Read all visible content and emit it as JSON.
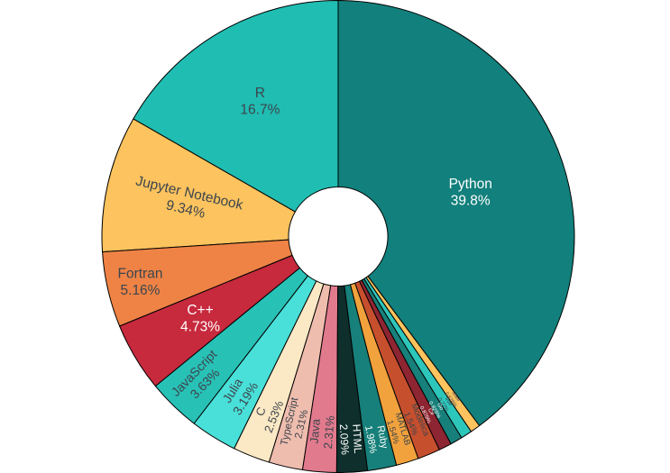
{
  "chart_data": {
    "type": "pie",
    "subtype": "donut",
    "title": "",
    "hole": 0.21,
    "background": "#ffffff",
    "outline_color": "#000000",
    "label_position": "inside",
    "layout_hints": {
      "start": "top",
      "largest_slice_direction": "clockwise-from-top",
      "remaining_slices_direction": "counterclockwise-from-top",
      "sorted": "descending",
      "legend": "none",
      "axes": "none"
    },
    "text_colors": {
      "dark": "#3d454d",
      "light": "#ffffff"
    },
    "slices": [
      {
        "label": "Python",
        "value": 39.8,
        "pct_label": "39.8%",
        "color": "#12807c",
        "text": "light"
      },
      {
        "label": "R",
        "value": 16.7,
        "pct_label": "16.7%",
        "color": "#20bdb2",
        "text": "dark"
      },
      {
        "label": "Jupyter Notebook",
        "value": 9.34,
        "pct_label": "9.34%",
        "color": "#fcc35e",
        "text": "dark"
      },
      {
        "label": "Fortran",
        "value": 5.16,
        "pct_label": "5.16%",
        "color": "#ee8345",
        "text": "dark"
      },
      {
        "label": "C++",
        "value": 4.73,
        "pct_label": "4.73%",
        "color": "#c7293d",
        "text": "light"
      },
      {
        "label": "JavaScript",
        "value": 3.63,
        "pct_label": "3.63%",
        "color": "#28c1b6",
        "text": "dark"
      },
      {
        "label": "Julia",
        "value": 3.19,
        "pct_label": "3.19%",
        "color": "#48e0d8",
        "text": "dark"
      },
      {
        "label": "C",
        "value": 2.53,
        "pct_label": "2.53%",
        "color": "#fbe8c4",
        "text": "dark"
      },
      {
        "label": "TypeScript",
        "value": 2.31,
        "pct_label": "2.31%",
        "color": "#efbdae",
        "text": "dark"
      },
      {
        "label": "Java",
        "value": 2.31,
        "pct_label": "2.31%",
        "color": "#e17a8d",
        "text": "dark"
      },
      {
        "label": "HTML",
        "value": 2.09,
        "pct_label": "2.09%",
        "color": "#0e2f2b",
        "text": "light"
      },
      {
        "label": "Ruby",
        "value": 1.98,
        "pct_label": "1.98%",
        "color": "#17807a",
        "text": "light"
      },
      {
        "label": "MATLAB",
        "value": 1.54,
        "pct_label": "1.54%",
        "color": "#f2a23c",
        "text": "dark"
      },
      {
        "label": "Modelica",
        "value": 1.54,
        "pct_label": "1.54%",
        "color": "#c64f2e",
        "text": "dark"
      },
      {
        "label": "C#",
        "value": 0.879,
        "pct_label": "0.879%",
        "color": "#8e2532",
        "text": "light"
      },
      {
        "label": "Go",
        "value": 0.825,
        "pct_label": "0.825%",
        "color": "#17807a",
        "text": "light"
      },
      {
        "label": "Vue",
        "value": 0.77,
        "pct_label": "0.77%",
        "color": "#2dc6bb",
        "text": "dark"
      },
      {
        "label": "Shell",
        "value": 0.676,
        "pct_label": "0.676%",
        "color": "#fcc35e",
        "text": "dark"
      }
    ]
  }
}
